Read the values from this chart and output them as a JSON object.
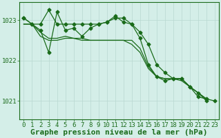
{
  "background_color": "#d4eee8",
  "grid_color": "#b8d8d0",
  "line_color": "#1a6b1a",
  "title": "Graphe pression niveau de la mer (hPa)",
  "xlabel_ticks": [
    0,
    1,
    2,
    3,
    4,
    5,
    6,
    7,
    8,
    9,
    10,
    11,
    12,
    13,
    14,
    15,
    16,
    17,
    18,
    19,
    20,
    21,
    22,
    23
  ],
  "ylim": [
    1020.55,
    1023.45
  ],
  "yticks": [
    1021,
    1022,
    1023
  ],
  "series": [
    [
      1023.05,
      1022.9,
      1022.9,
      1023.25,
      1022.9,
      1022.9,
      1022.9,
      1022.9,
      1022.9,
      1022.9,
      1022.95,
      1023.05,
      1023.05,
      1022.9,
      1022.7,
      1022.4,
      1021.9,
      1021.7,
      1021.55,
      1021.55,
      1021.35,
      1021.2,
      1021.0,
      null
    ],
    [
      1022.9,
      1022.9,
      1022.7,
      1022.55,
      1022.55,
      1022.6,
      1022.55,
      1022.55,
      1022.5,
      1022.5,
      1022.5,
      1022.5,
      1022.5,
      1022.5,
      1022.3,
      1021.85,
      1021.6,
      1021.55,
      1021.55,
      1021.55,
      1021.35,
      1021.2,
      1021.05,
      null
    ],
    [
      1022.9,
      1022.9,
      1022.6,
      1022.5,
      1022.5,
      1022.55,
      1022.55,
      1022.5,
      1022.5,
      1022.5,
      1022.5,
      1022.5,
      1022.5,
      1022.4,
      1022.2,
      1021.8,
      1021.6,
      1021.55,
      1021.55,
      1021.5,
      1021.35,
      1021.2,
      1021.05,
      null
    ],
    [
      1023.05,
      1022.9,
      1022.75,
      1022.2,
      1023.2,
      1022.75,
      1022.8,
      1022.6,
      1022.8,
      1022.9,
      1022.95,
      1023.1,
      1022.95,
      1022.9,
      1022.55,
      1021.9,
      1021.6,
      1021.5,
      1021.55,
      1021.55,
      1021.35,
      1021.1,
      1021.05,
      1021.0
    ]
  ],
  "marker_series": [
    0,
    3
  ],
  "marker": "D",
  "marker_size": 2.5,
  "line_width": 0.9,
  "title_fontsize": 8,
  "tick_fontsize": 6.5
}
